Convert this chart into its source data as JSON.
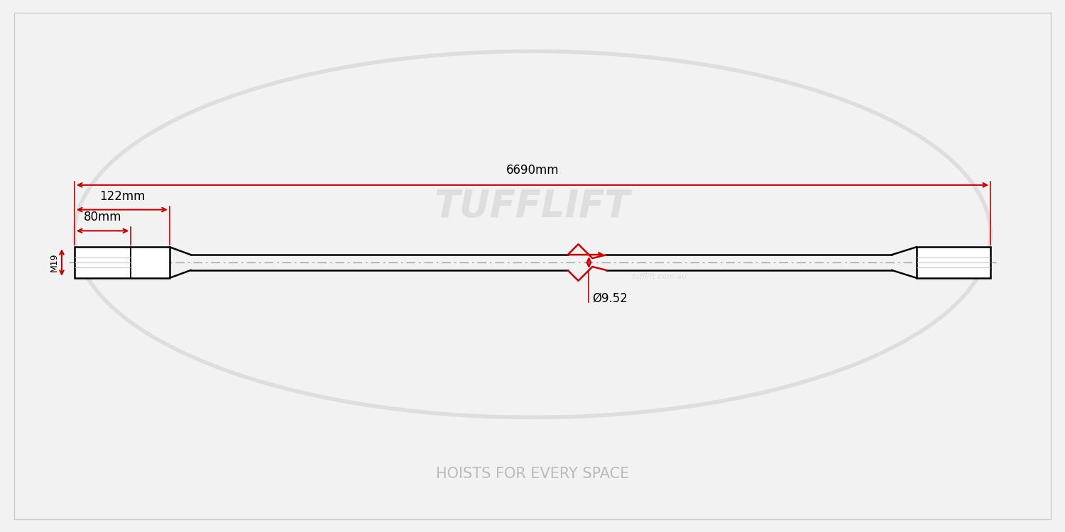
{
  "bg_color": "#f2f2f2",
  "drawing_bg": "#ffffff",
  "red": "#cc0000",
  "black": "#000000",
  "gray": "#999999",
  "light_gray": "#cccccc",
  "dark_gray": "#555555",
  "watermark_color": "#dedede",
  "tagline_color": "#bbbbbb",
  "total_label": "6690mm",
  "thread_label_122": "122mm",
  "thread_label_80": "80mm",
  "diameter_label": "Ø9.52",
  "thread_label": "M19",
  "watermark_text": "TUFFLIFT",
  "tagline": "HOISTS FOR EVERY SPACE",
  "website": "tufflift.com.au",
  "annot_fontsize": 12
}
